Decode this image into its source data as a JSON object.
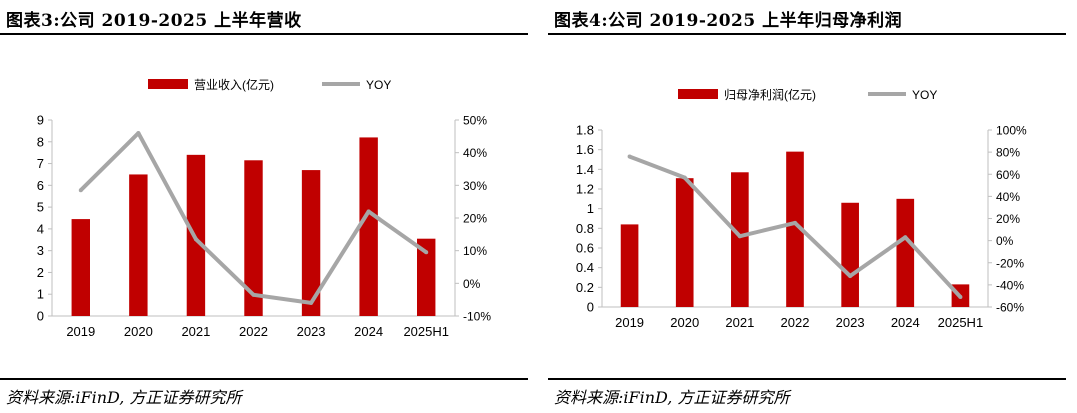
{
  "colors": {
    "bar": "#C00000",
    "line": "#A6A6A6",
    "axis": "#BFBFBF"
  },
  "panels": [
    {
      "title": "图表3:公司 2019-2025 上半年营收",
      "source": "资料来源:iFinD, 方正证券研究所",
      "chart_data": {
        "type": "bar",
        "title": "图表3:公司 2019-2025 上半年营收",
        "categories": [
          "2019",
          "2020",
          "2021",
          "2022",
          "2023",
          "2024",
          "2025H1"
        ],
        "series": [
          {
            "name": "营业收入(亿元)",
            "type": "bar",
            "axis": "left",
            "values": [
              4.45,
              6.5,
              7.4,
              7.15,
              6.7,
              8.2,
              3.55
            ]
          },
          {
            "name": "YOY",
            "type": "line",
            "axis": "right",
            "values": [
              28.5,
              46,
              13.5,
              -3.5,
              -6,
              22,
              9.5
            ]
          }
        ],
        "yleft": {
          "min": 0,
          "max": 9,
          "step": 1,
          "ticks": [
            "0",
            "1",
            "2",
            "3",
            "4",
            "5",
            "6",
            "7",
            "8",
            "9"
          ]
        },
        "yright": {
          "min": -10,
          "max": 50,
          "step": 10,
          "ticks": [
            "-10%",
            "0%",
            "10%",
            "20%",
            "30%",
            "40%",
            "50%"
          ]
        },
        "legend": "top-center",
        "grid": false
      }
    },
    {
      "title": "图表4:公司 2019-2025 上半年归母净利润",
      "source": "资料来源:iFinD, 方正证券研究所",
      "chart_data": {
        "type": "bar",
        "title": "图表4:公司 2019-2025 上半年归母净利润",
        "categories": [
          "2019",
          "2020",
          "2021",
          "2022",
          "2023",
          "2024",
          "2025H1"
        ],
        "series": [
          {
            "name": "归母净利润(亿元)",
            "type": "bar",
            "axis": "left",
            "values": [
              0.84,
              1.31,
              1.37,
              1.58,
              1.06,
              1.1,
              0.23
            ]
          },
          {
            "name": "YOY",
            "type": "line",
            "axis": "right",
            "values": [
              76,
              57,
              4,
              16,
              -32,
              3,
              -51
            ]
          }
        ],
        "yleft": {
          "min": 0,
          "max": 1.8,
          "step": 0.2,
          "ticks": [
            "0",
            "0.2",
            "0.4",
            "0.6",
            "0.8",
            "1",
            "1.2",
            "1.4",
            "1.6",
            "1.8"
          ]
        },
        "yright": {
          "min": -60,
          "max": 100,
          "step": 20,
          "ticks": [
            "-60%",
            "-40%",
            "-20%",
            "0%",
            "20%",
            "40%",
            "60%",
            "80%",
            "100%"
          ]
        },
        "legend": "top-center",
        "grid": false
      }
    }
  ]
}
